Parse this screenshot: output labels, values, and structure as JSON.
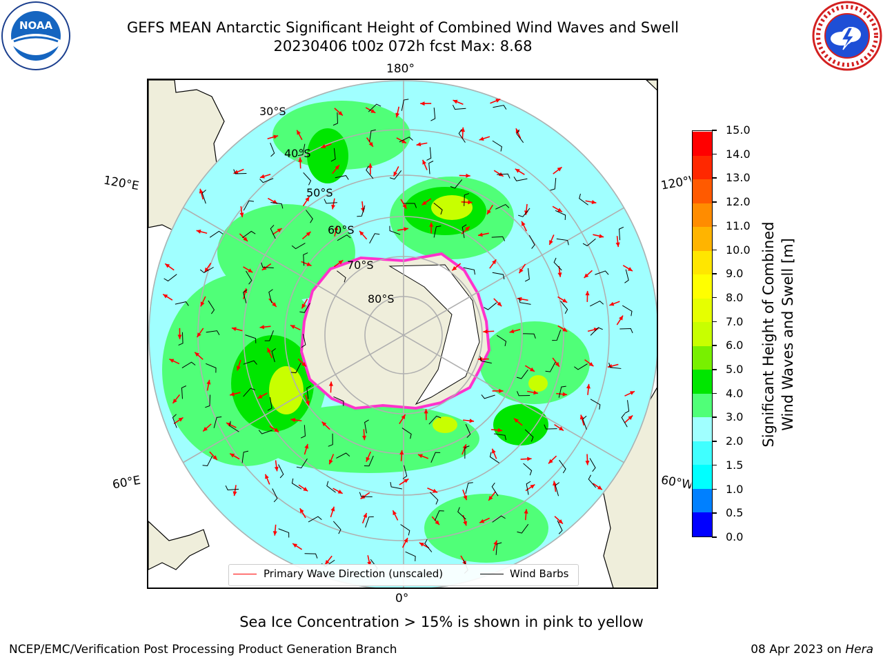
{
  "title": {
    "line1": "GEFS MEAN Antarctic Significant Height of Combined Wind Waves and Swell",
    "line2": "20230406 t00z 072h fcst   Max: 8.68"
  },
  "logos": {
    "left": "noaa-logo",
    "right": "nws-logo"
  },
  "map": {
    "projection": "south-polar-stereographic",
    "longitude_labels": {
      "top": "180°",
      "bottom": "0°",
      "left_upper": "120°E",
      "left_lower": "60°E",
      "right_upper": "120°W",
      "right_lower": "60°W"
    },
    "latitude_labels": [
      "30°S",
      "40°S",
      "50°S",
      "60°S",
      "70°S",
      "80°S"
    ],
    "legend": {
      "wave_direction": "Primary Wave Direction (unscaled)",
      "wind_barbs": "Wind Barbs"
    },
    "colors": {
      "land": "#efeedb",
      "ice_edge": "#ff33cc",
      "wave_arrow": "#ff0000",
      "wind_barb": "#000000",
      "graticule": "#b0b0b0"
    }
  },
  "colorbar": {
    "label_line1": "Significant Height of Combined",
    "label_line2": "Wind Waves and Swell [m]",
    "ticks": [
      "0.0",
      "0.5",
      "1.0",
      "1.5",
      "2.0",
      "3.0",
      "4.0",
      "5.0",
      "6.0",
      "7.0",
      "8.0",
      "9.0",
      "10.0",
      "11.0",
      "12.0",
      "13.0",
      "14.0",
      "15.0"
    ],
    "colors": [
      "#0000ff",
      "#0080ff",
      "#00ffff",
      "#40ffff",
      "#a0ffff",
      "#50ff78",
      "#00e600",
      "#78f000",
      "#c8ff00",
      "#e6ff00",
      "#ffff00",
      "#ffe600",
      "#ffb400",
      "#ff8c00",
      "#ff5a00",
      "#ff2800",
      "#ff0000"
    ]
  },
  "subtitle": "Sea Ice Concentration > 15% is shown in pink to yellow",
  "footer": {
    "left": "NCEP/EMC/Verification Post Processing Product Generation Branch",
    "date": "08 Apr 2023 on",
    "host": "Hera"
  }
}
